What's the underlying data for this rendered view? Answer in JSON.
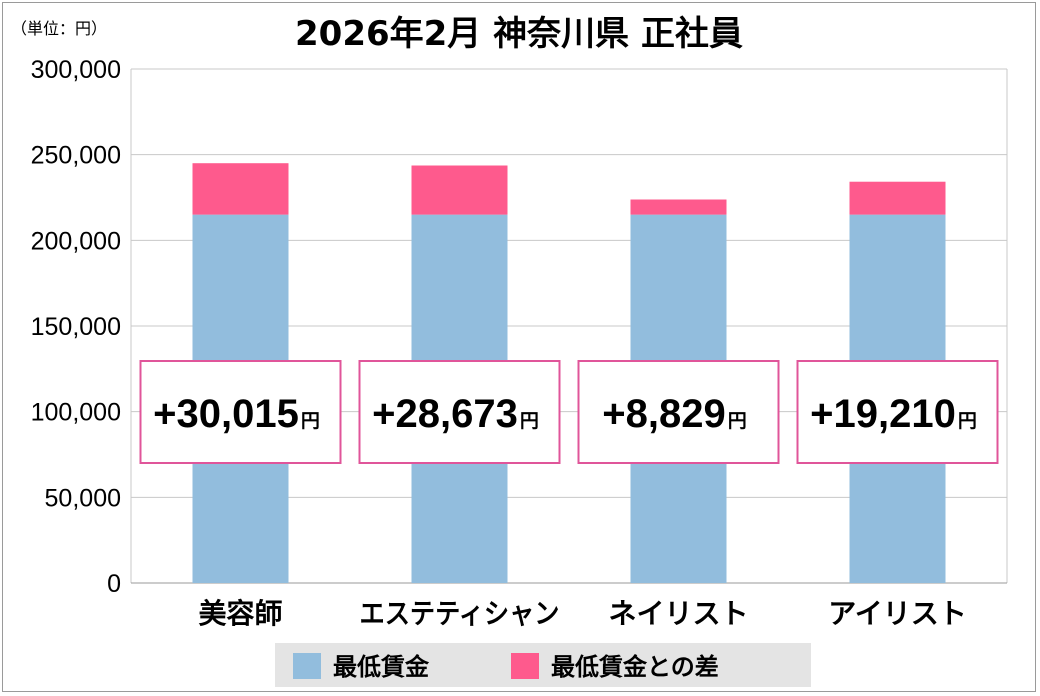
{
  "unit_label": "（単位：円）",
  "chart_data": {
    "type": "bar",
    "stacked": true,
    "title": "2026年2月 神奈川県 正社員",
    "categories": [
      "美容師",
      "エステティシャン",
      "ネイリスト",
      "アイリスト"
    ],
    "series": [
      {
        "name": "最低賃金",
        "color": "#92bddd",
        "values": [
          215000,
          215000,
          215000,
          215000
        ]
      },
      {
        "name": "最低賃金との差",
        "color": "#fe5a8d",
        "values": [
          30015,
          28673,
          8829,
          19210
        ]
      }
    ],
    "callouts": [
      {
        "text": "+30,015",
        "unit": "円"
      },
      {
        "text": "+28,673",
        "unit": "円"
      },
      {
        "text": "+8,829",
        "unit": "円"
      },
      {
        "text": "+19,210",
        "unit": "円"
      }
    ],
    "ylim": [
      0,
      300000
    ],
    "yticks": [
      0,
      50000,
      100000,
      150000,
      200000,
      250000,
      300000
    ],
    "ytick_labels": [
      "0",
      "50,000",
      "100,000",
      "150,000",
      "200,000",
      "250,000",
      "300,000"
    ],
    "grid": true,
    "legend_position": "bottom",
    "colors": {
      "grid": "#c8c8c8",
      "callout_border": "#e0559a",
      "legend_bg": "#e4e4e4"
    }
  }
}
